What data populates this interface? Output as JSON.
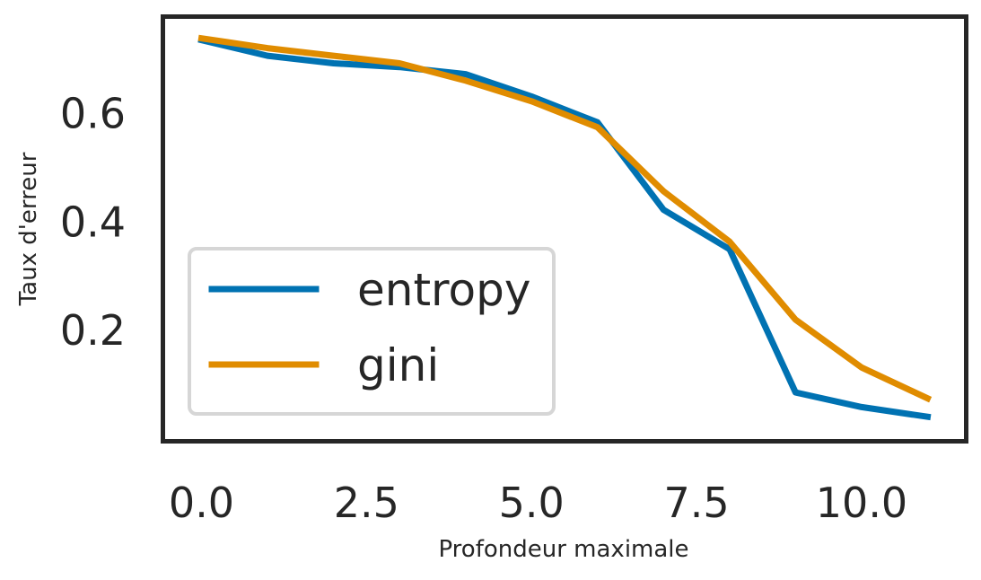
{
  "chart_data": {
    "type": "line",
    "title": "",
    "xlabel": "Profondeur maximale",
    "ylabel": "Taux d'erreur",
    "x": [
      0,
      1,
      2,
      3,
      4,
      5,
      6,
      7,
      8,
      9,
      10,
      11
    ],
    "series": [
      {
        "name": "entropy",
        "color": "#0072B2",
        "values": [
          0.736,
          0.707,
          0.693,
          0.686,
          0.673,
          0.632,
          0.584,
          0.423,
          0.35,
          0.086,
          0.059,
          0.041
        ]
      },
      {
        "name": "gini",
        "color": "#E08C00",
        "values": [
          0.739,
          0.721,
          0.707,
          0.693,
          0.661,
          0.623,
          0.575,
          0.457,
          0.364,
          0.22,
          0.132,
          0.075
        ]
      }
    ],
    "xlim": [
      -0.55,
      11.55
    ],
    "ylim": [
      0.0,
      0.775
    ],
    "xticks": [
      0,
      2.5,
      5,
      7.5,
      10
    ],
    "xtick_labels": [
      "0.0",
      "2.5",
      "5.0",
      "7.5",
      "10.0"
    ],
    "yticks": [
      0.2,
      0.4,
      0.6
    ],
    "ytick_labels": [
      "0.2",
      "0.4",
      "0.6"
    ],
    "grid": false,
    "legend_position": "lower-left"
  }
}
